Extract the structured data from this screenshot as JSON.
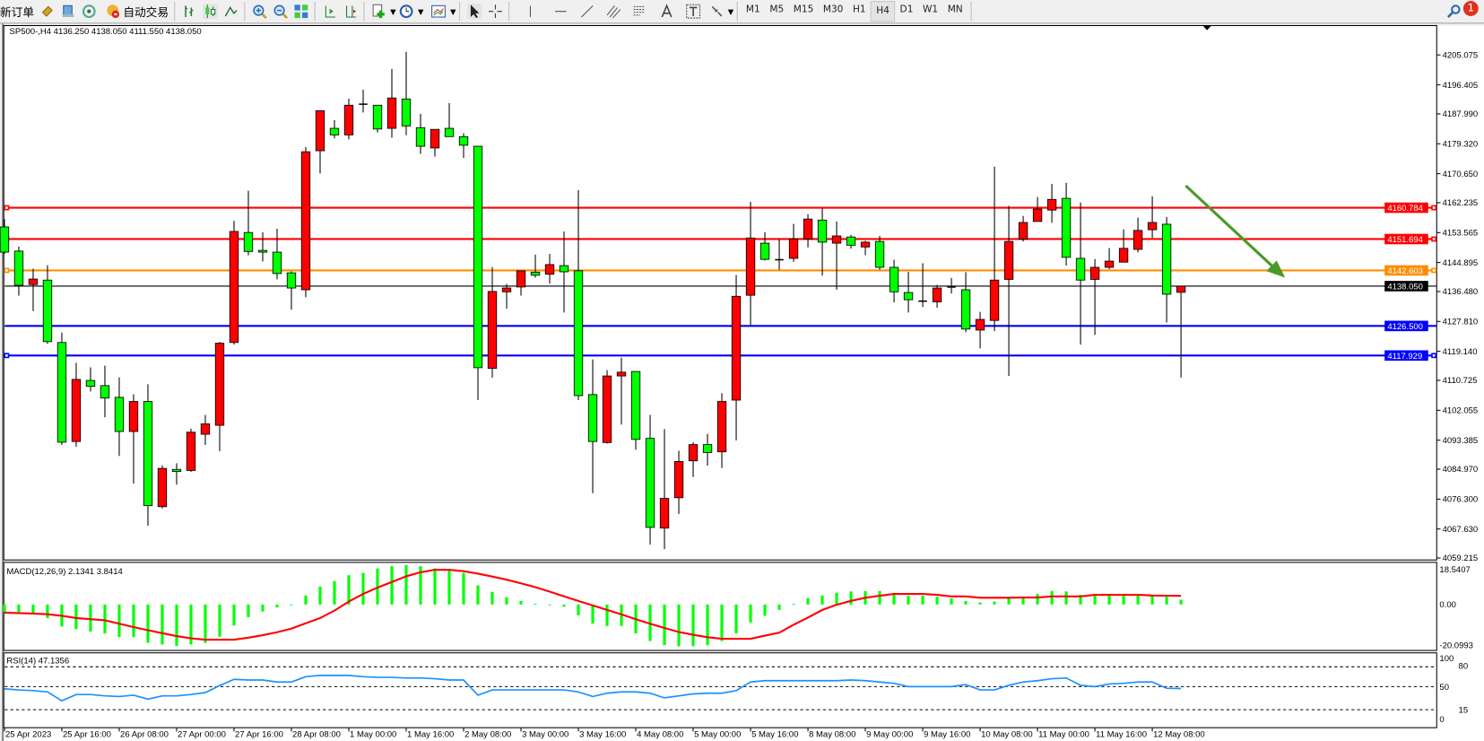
{
  "toolbar": {
    "new_order_label": "新订单",
    "autotrade_label": "自动交易",
    "timeframes": [
      "M1",
      "M5",
      "M15",
      "M30",
      "H1",
      "H4",
      "D1",
      "W1",
      "MN"
    ],
    "active_timeframe": "H4",
    "notification_count": "1",
    "icons": [
      "new-order-icon",
      "market-watch-icon",
      "navigator-icon",
      "signals-icon",
      "autotrade-icon",
      "bar-chart-icon",
      "candlestick-icon",
      "line-chart-icon",
      "zoom-in-icon",
      "zoom-out-icon",
      "tile-windows-icon",
      "chart-shift-icon",
      "autoscroll-icon",
      "indicators-icon",
      "periods-icon",
      "templates-icon",
      "cursor-icon",
      "crosshair-icon",
      "vertical-line-icon",
      "horizontal-line-icon",
      "trendline-icon",
      "equidistant-channel-icon",
      "fibonacci-icon",
      "text-icon",
      "text-label-icon",
      "arrows-icon",
      "search-icon",
      "notification-icon"
    ]
  },
  "chart": {
    "header": "SP500-,H4  4136.250 4138.050 4111.550 4138.050",
    "macd_label": "MACD(12,26,9) 2.1341 3.8414",
    "rsi_label": "RSI(14) 47.1356",
    "colors": {
      "bull": "#ff0000",
      "bear": "#00ff00",
      "macd_hist": "#00ff00",
      "macd_signal": "#ff0000",
      "rsi": "#1e90ff",
      "arrow": "#4a9a2a"
    }
  },
  "chart_data": [
    {
      "type": "candlestick",
      "symbol": "SP500-",
      "timeframe": "H4",
      "ohlc_order": [
        "open",
        "high",
        "low",
        "close"
      ],
      "candles": [
        [
          4155.2,
          4157.5,
          4147.4,
          4147.9
        ],
        [
          4148.2,
          4149.5,
          4135.3,
          4138.3
        ],
        [
          4138.5,
          4143.1,
          4130.8,
          4140.1
        ],
        [
          4139.8,
          4144.1,
          4121.3,
          4121.95
        ],
        [
          4121.7,
          4124.6,
          4092.0,
          4092.8
        ],
        [
          4093.0,
          4115.8,
          4091.5,
          4111.0
        ],
        [
          4110.7,
          4114.5,
          4107.5,
          4109.0
        ],
        [
          4109.2,
          4115.0,
          4100.0,
          4105.6
        ],
        [
          4105.8,
          4111.6,
          4088.8,
          4095.9
        ],
        [
          4095.9,
          4106.7,
          4080.8,
          4104.6
        ],
        [
          4104.6,
          4109.6,
          4068.6,
          4074.4
        ],
        [
          4074.1,
          4086.1,
          4073.6,
          4085.2
        ],
        [
          4084.9,
          4086.7,
          4080.5,
          4084.3
        ],
        [
          4084.6,
          4096.7,
          4084.2,
          4095.7
        ],
        [
          4095.1,
          4100.7,
          4092.0,
          4098.1
        ],
        [
          4097.7,
          4121.9,
          4090.2,
          4121.5
        ],
        [
          4121.7,
          4157.0,
          4121.1,
          4153.9
        ],
        [
          4153.6,
          4165.7,
          4147.0,
          4148.1
        ],
        [
          4148.4,
          4153.7,
          4145.2,
          4147.9
        ],
        [
          4147.9,
          4154.7,
          4140.0,
          4141.7
        ],
        [
          4141.9,
          4142.3,
          4131.2,
          4137.5
        ],
        [
          4137.0,
          4178.4,
          4134.8,
          4177.0
        ],
        [
          4177.3,
          4189.0,
          4170.7,
          4188.9
        ],
        [
          4183.8,
          4186.2,
          4180.9,
          4181.9
        ],
        [
          4181.9,
          4192.4,
          4180.6,
          4190.5
        ],
        [
          4190.8,
          4195.0,
          4188.4,
          4190.6
        ],
        [
          4190.5,
          4190.5,
          4182.6,
          4183.6
        ],
        [
          4183.8,
          4201.0,
          4181.1,
          4192.6
        ],
        [
          4192.3,
          4206.0,
          4181.8,
          4184.5
        ],
        [
          4184.0,
          4188.0,
          4176.4,
          4178.6
        ],
        [
          4178.1,
          4183.5,
          4175.6,
          4183.5
        ],
        [
          4183.8,
          4191.1,
          4181.4,
          4181.4
        ],
        [
          4181.4,
          4182.4,
          4175.2,
          4178.9
        ],
        [
          4178.6,
          4178.6,
          4105.0,
          4114.4
        ],
        [
          4114.2,
          4143.6,
          4111.5,
          4136.5
        ],
        [
          4136.4,
          4138.7,
          4131.5,
          4137.5
        ],
        [
          4137.8,
          4142.5,
          4135.3,
          4142.5
        ],
        [
          4142.1,
          4147.2,
          4140.5,
          4141.2
        ],
        [
          4141.5,
          4147.4,
          4138.8,
          4144.3
        ],
        [
          4144.0,
          4153.9,
          4130.4,
          4142.2
        ],
        [
          4142.5,
          4165.9,
          4105.0,
          4106.3
        ],
        [
          4106.6,
          4116.8,
          4078.0,
          4093.0
        ],
        [
          4092.7,
          4113.7,
          4092.4,
          4112.0
        ],
        [
          4112.0,
          4117.3,
          4097.9,
          4113.1
        ],
        [
          4113.3,
          4113.3,
          4090.6,
          4093.6
        ],
        [
          4093.9,
          4100.7,
          4063.1,
          4068.1
        ],
        [
          4067.9,
          4096.6,
          4061.8,
          4076.5
        ],
        [
          4076.7,
          4090.3,
          4072.0,
          4087.2
        ],
        [
          4087.4,
          4092.8,
          4082.7,
          4092.1
        ],
        [
          4092.1,
          4095.2,
          4086.0,
          4089.8
        ],
        [
          4090.0,
          4107.0,
          4085.3,
          4104.6
        ],
        [
          4105.0,
          4141.3,
          4093.3,
          4135.1
        ],
        [
          4135.4,
          4162.5,
          4126.7,
          4152.0
        ],
        [
          4150.5,
          4153.7,
          4145.5,
          4145.8
        ],
        [
          4145.7,
          4151.6,
          4142.8,
          4145.7
        ],
        [
          4146.1,
          4156.1,
          4145.1,
          4151.7
        ],
        [
          4151.7,
          4158.9,
          4149.3,
          4157.5
        ],
        [
          4157.2,
          4160.6,
          4141.1,
          4150.8
        ],
        [
          4150.5,
          4156.8,
          4137.0,
          4152.6
        ],
        [
          4152.3,
          4152.9,
          4148.9,
          4149.9
        ],
        [
          4149.4,
          4151.2,
          4147.0,
          4150.8
        ],
        [
          4151.0,
          4152.6,
          4142.8,
          4143.5
        ],
        [
          4143.5,
          4145.7,
          4133.3,
          4136.4
        ],
        [
          4136.2,
          4142.2,
          4130.4,
          4134.1
        ],
        [
          4133.7,
          4144.7,
          4132.0,
          4133.7
        ],
        [
          4133.5,
          4138.4,
          4131.8,
          4137.5
        ],
        [
          4137.8,
          4140.4,
          4135.9,
          4137.8
        ],
        [
          4137.0,
          4142.1,
          4124.7,
          4125.6
        ],
        [
          4125.3,
          4130.6,
          4120.0,
          4128.4
        ],
        [
          4128.1,
          4172.7,
          4125.0,
          4139.8
        ],
        [
          4140.0,
          4161.3,
          4112.0,
          4151.0
        ],
        [
          4151.7,
          4158.4,
          4151.0,
          4156.5
        ],
        [
          4156.8,
          4163.9,
          4156.8,
          4160.4
        ],
        [
          4160.1,
          4167.7,
          4156.4,
          4163.2
        ],
        [
          4163.5,
          4168.0,
          4144.0,
          4146.4
        ],
        [
          4146.1,
          4162.3,
          4121.1,
          4139.8
        ],
        [
          4140.0,
          4145.9,
          4123.9,
          4143.5
        ],
        [
          4143.5,
          4149.1,
          4143.0,
          4145.3
        ],
        [
          4145.0,
          4154.5,
          4145.0,
          4149.0
        ],
        [
          4148.7,
          4157.9,
          4147.8,
          4154.2
        ],
        [
          4154.4,
          4164.1,
          4152.0,
          4156.5
        ],
        [
          4156.0,
          4158.1,
          4127.5,
          4135.7
        ],
        [
          4136.25,
          4138.05,
          4111.55,
          4138.05
        ]
      ],
      "y_ticks": [
        "4205.075",
        "4196.405",
        "4187.990",
        "4179.320",
        "4170.650",
        "4162.235",
        "4153.565",
        "4144.895",
        "4136.480",
        "4127.810",
        "4119.140",
        "4110.725",
        "4102.055",
        "4093.385",
        "4084.970",
        "4076.300",
        "4067.630",
        "4059.215"
      ],
      "ylim": [
        4059.215,
        4205.075
      ],
      "x_tick_labels": [
        "25 Apr 2023",
        "25 Apr 16:00",
        "26 Apr 08:00",
        "27 Apr 00:00",
        "27 Apr 16:00",
        "28 Apr 08:00",
        "1 May 00:00",
        "1 May 16:00",
        "2 May 08:00",
        "3 May 00:00",
        "3 May 16:00",
        "4 May 08:00",
        "5 May 00:00",
        "5 May 16:00",
        "8 May 08:00",
        "9 May 00:00",
        "9 May 16:00",
        "10 May 08:00",
        "11 May 00:00",
        "11 May 16:00",
        "12 May 08:00"
      ],
      "x_tick_every_bars": 4,
      "horizontal_lines": [
        {
          "price": 4160.784,
          "label": "4160.784",
          "color": "#ff0000"
        },
        {
          "price": 4151.694,
          "label": "4151.694",
          "color": "#ff0000"
        },
        {
          "price": 4142.603,
          "label": "4142.603",
          "color": "#ff8c00"
        },
        {
          "price": 4138.05,
          "label": "4138.050",
          "color": "#000000"
        },
        {
          "price": 4126.5,
          "label": "4126.500",
          "color": "#0000ff"
        },
        {
          "price": 4117.929,
          "label": "4117.929",
          "color": "#0000ff"
        }
      ],
      "annotation": "green down arrow"
    },
    {
      "type": "bar+line",
      "name": "MACD(12,26,9)",
      "histogram": [
        -3.3,
        -3.3,
        -4.3,
        -6,
        -9.7,
        -10.9,
        -12,
        -12.8,
        -14.4,
        -14.4,
        -17,
        -17.7,
        -18.4,
        -17.7,
        -17,
        -14.3,
        -9.3,
        -5.6,
        -3.1,
        -1.3,
        0,
        4,
        8,
        10.4,
        13,
        14,
        16,
        17,
        17.5,
        17,
        16,
        15,
        14,
        8.5,
        5.6,
        3.2,
        1.6,
        0.3,
        -0.1,
        -1,
        -4.8,
        -8.5,
        -9.5,
        -9.5,
        -12.8,
        -16.2,
        -18,
        -18.5,
        -18.5,
        -18,
        -16.2,
        -12.8,
        -8,
        -5,
        -2.4,
        0.3,
        2.8,
        4,
        5.2,
        5.8,
        6,
        6,
        5.2,
        3.9,
        3.9,
        3.4,
        2.7,
        1.6,
        0.9,
        1.3,
        3.4,
        3.6,
        4.7,
        6,
        5.8,
        4.3,
        3.9,
        4.3,
        4.6,
        4.3,
        4.3,
        3.4,
        2.1341
      ],
      "signal": [
        -3.6,
        -3.8,
        -4,
        -4.3,
        -5,
        -6,
        -6.5,
        -7,
        -8.5,
        -10,
        -11.4,
        -12.7,
        -14,
        -15,
        -15.6,
        -15.6,
        -15.6,
        -14.7,
        -13.6,
        -12.3,
        -10.7,
        -8.3,
        -6,
        -2.7,
        1.3,
        4.7,
        7.5,
        10,
        12.5,
        14.3,
        15.4,
        15.4,
        14.8,
        13.7,
        12.4,
        11,
        9.4,
        7.7,
        5.7,
        3.6,
        1.6,
        -0.4,
        -2.4,
        -4.4,
        -6.5,
        -8.5,
        -10.4,
        -12.2,
        -13.4,
        -14.5,
        -15.2,
        -15.2,
        -15.2,
        -13.8,
        -12.5,
        -9,
        -5.8,
        -2.4,
        -0.1,
        1.6,
        3,
        3.9,
        4.7,
        4.7,
        4.7,
        4.3,
        3.6,
        3.6,
        3,
        3,
        3,
        3.1,
        3.1,
        3.6,
        3.6,
        3.6,
        4.3,
        4.3,
        4.3,
        4.3,
        4,
        3.9,
        3.84
      ],
      "y_ticks": [
        "18.5407",
        "0.00",
        "-20.0993"
      ],
      "ylim": [
        -20.0993,
        18.5407
      ]
    },
    {
      "type": "line",
      "name": "RSI(14)",
      "values": [
        46.6,
        45,
        44,
        42,
        28.5,
        38,
        38,
        36,
        35,
        37,
        31,
        36,
        36,
        38,
        41,
        51.6,
        61,
        60,
        60,
        57,
        57,
        65,
        67,
        67,
        67,
        65,
        64,
        64,
        63,
        63,
        62,
        60,
        60,
        37,
        45,
        45,
        45,
        45,
        45,
        45,
        42,
        35,
        40,
        42,
        42,
        40,
        33,
        36,
        39,
        40,
        40,
        44,
        57,
        59,
        59,
        59,
        59,
        59,
        59,
        60,
        59,
        57,
        55,
        50,
        50,
        50,
        50,
        53,
        45,
        45,
        52,
        57,
        59,
        62,
        63,
        52,
        50,
        54,
        55,
        57,
        57,
        47.5,
        47.1356
      ],
      "levels": [
        80,
        50,
        15
      ],
      "y_ticks": [
        "100",
        "80",
        "50",
        "15",
        "0"
      ],
      "ylim": [
        0,
        100
      ]
    }
  ]
}
